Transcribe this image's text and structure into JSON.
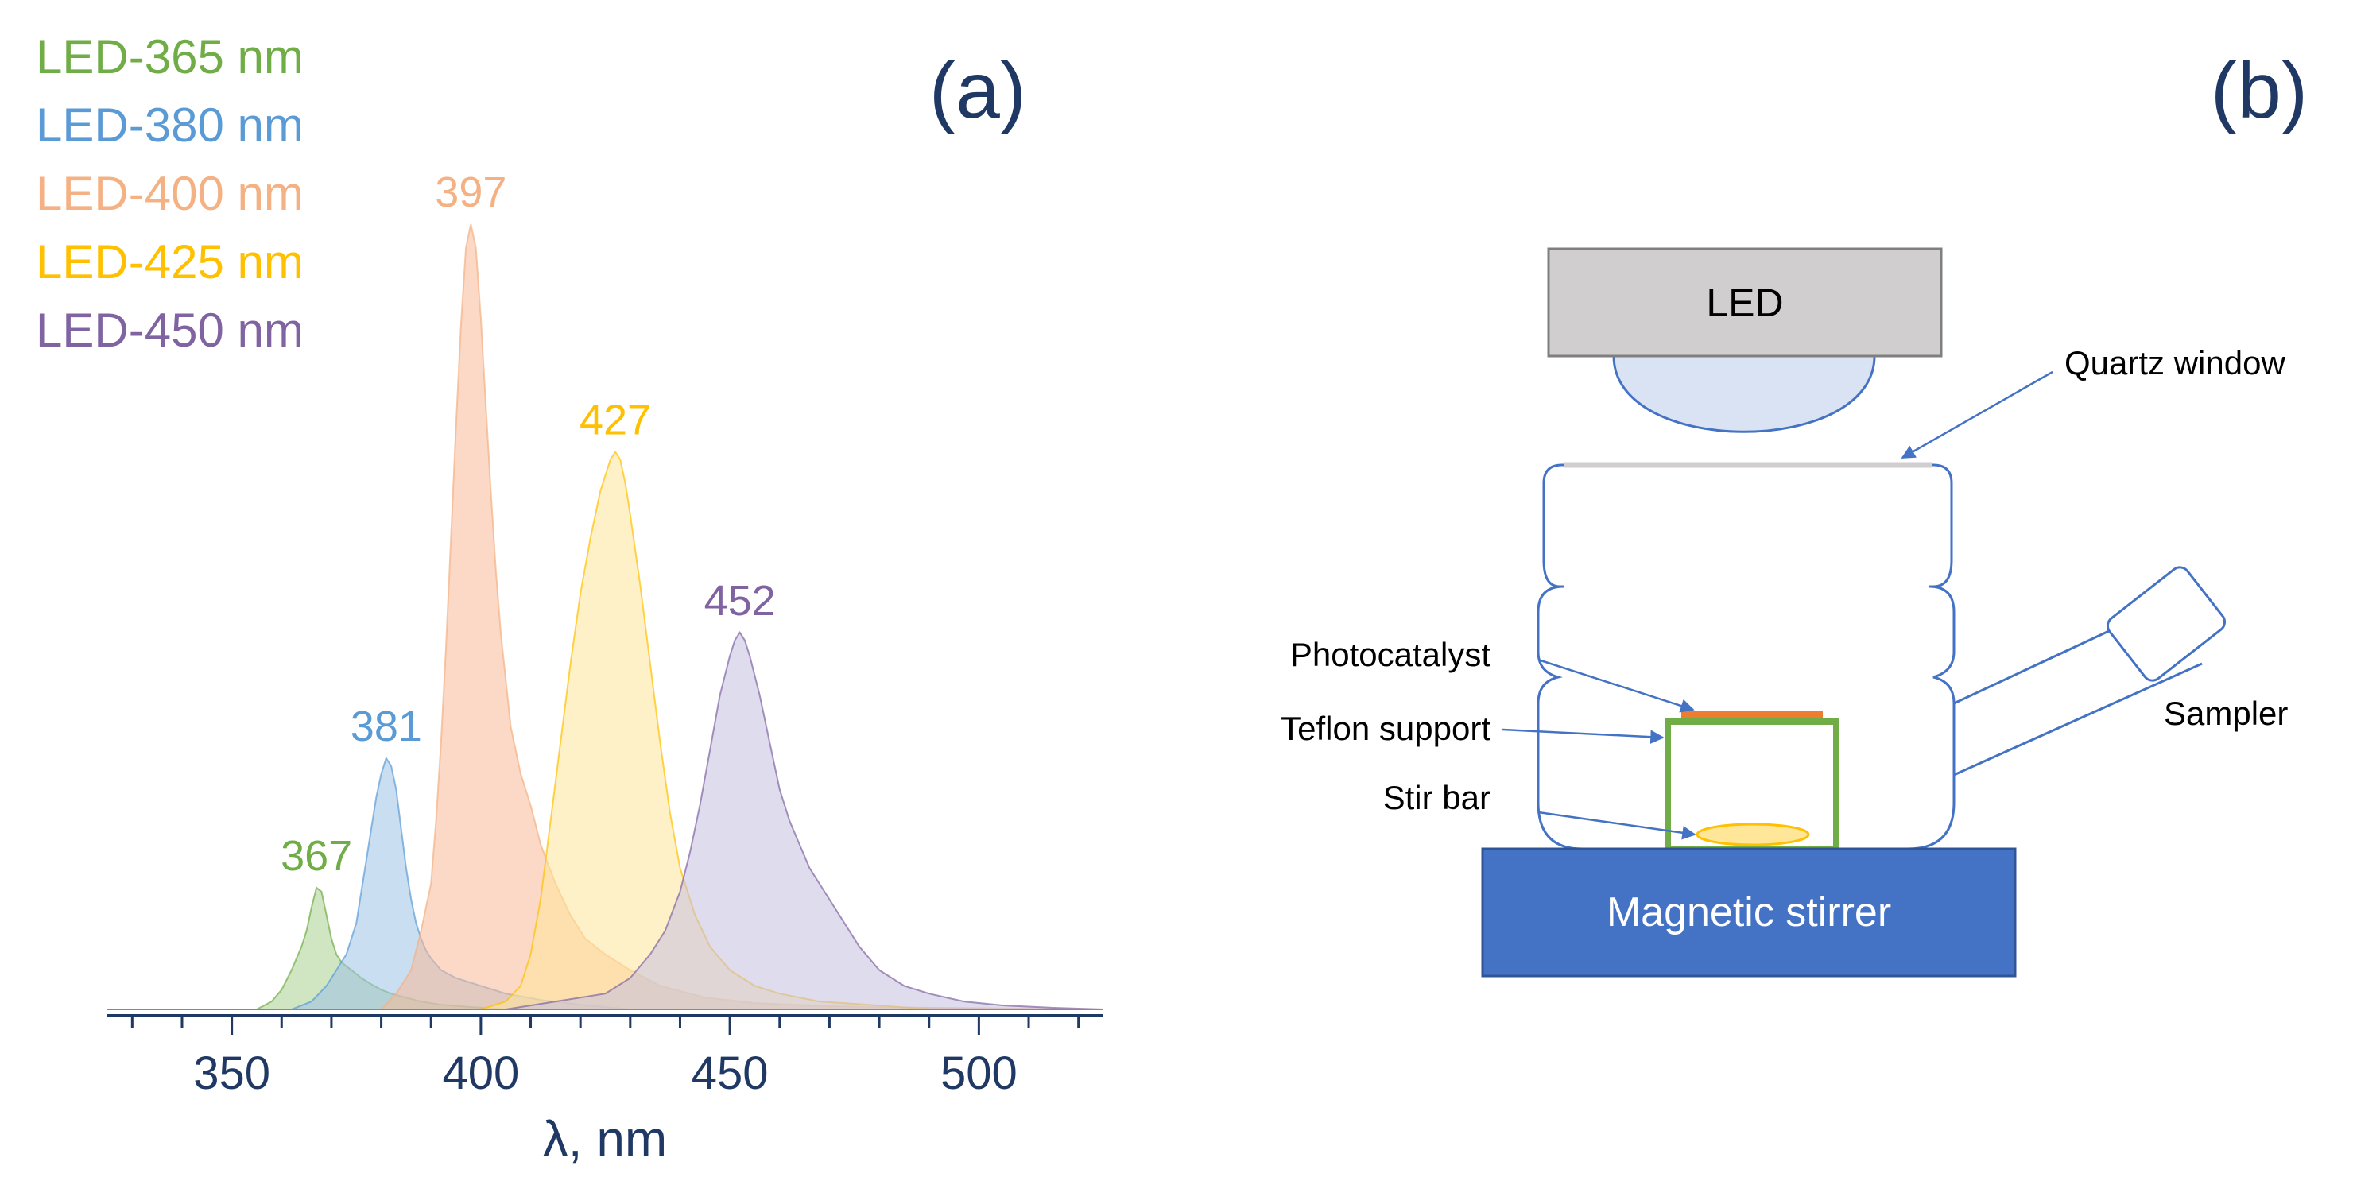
{
  "panels": {
    "a_label": "(a)",
    "b_label": "(b)"
  },
  "chart_data": {
    "type": "area",
    "title": "",
    "xlabel": "λ, nm",
    "ylabel": "",
    "xlim": [
      325,
      525
    ],
    "ylim": [
      0,
      1.0
    ],
    "x_ticks": [
      350,
      400,
      450,
      500
    ],
    "x_tick_labels": [
      "350",
      "400",
      "450",
      "500"
    ],
    "grid": false,
    "legend_position": "top-left",
    "series": [
      {
        "name": "LED-365 nm",
        "color": "#70ad47",
        "fill": "#a9d08e",
        "peak_label": "367",
        "x": [
          325,
          355,
          358,
          360,
          362,
          364,
          365,
          366,
          367,
          368,
          369,
          370,
          371,
          372,
          373,
          374,
          375,
          376,
          378,
          380,
          382,
          385,
          388,
          392,
          398,
          405,
          415,
          525
        ],
        "y": [
          0.0,
          0.0,
          0.01,
          0.025,
          0.05,
          0.08,
          0.1,
          0.13,
          0.155,
          0.15,
          0.12,
          0.09,
          0.07,
          0.06,
          0.055,
          0.05,
          0.045,
          0.04,
          0.032,
          0.025,
          0.02,
          0.015,
          0.01,
          0.006,
          0.003,
          0.0,
          0.0,
          0.0
        ]
      },
      {
        "name": "LED-380 nm",
        "color": "#5b9bd5",
        "fill": "#9dc3e6",
        "peak_label": "381",
        "x": [
          325,
          362,
          366,
          369,
          371,
          373,
          374,
          375,
          376,
          377,
          378,
          379,
          380,
          381,
          382,
          383,
          384,
          385,
          386,
          387,
          388,
          389,
          390,
          392,
          395,
          400,
          405,
          412,
          420,
          430,
          525
        ],
        "y": [
          0.0,
          0.0,
          0.01,
          0.03,
          0.05,
          0.07,
          0.09,
          0.11,
          0.15,
          0.19,
          0.23,
          0.27,
          0.3,
          0.32,
          0.31,
          0.28,
          0.23,
          0.18,
          0.14,
          0.11,
          0.09,
          0.075,
          0.065,
          0.05,
          0.04,
          0.03,
          0.02,
          0.012,
          0.006,
          0.0,
          0.0
        ]
      },
      {
        "name": "LED-400 nm",
        "color": "#f4b183",
        "fill": "#f8b998",
        "peak_label": "397",
        "x": [
          325,
          380,
          383,
          386,
          388,
          390,
          391,
          392,
          393,
          394,
          395,
          396,
          397,
          398,
          399,
          400,
          401,
          402,
          403,
          404,
          405,
          406,
          408,
          410,
          412,
          415,
          418,
          421,
          425,
          430,
          436,
          445,
          455,
          470,
          490,
          525
        ],
        "y": [
          0.0,
          0.0,
          0.02,
          0.05,
          0.1,
          0.16,
          0.24,
          0.34,
          0.46,
          0.6,
          0.74,
          0.87,
          0.97,
          1.0,
          0.97,
          0.88,
          0.77,
          0.66,
          0.56,
          0.48,
          0.42,
          0.36,
          0.3,
          0.26,
          0.21,
          0.16,
          0.12,
          0.09,
          0.07,
          0.05,
          0.03,
          0.015,
          0.008,
          0.004,
          0.002,
          0.0
        ]
      },
      {
        "name": "LED-425 nm",
        "color": "#ffc000",
        "fill": "#ffe699",
        "peak_label": "427",
        "x": [
          325,
          400,
          405,
          408,
          410,
          412,
          414,
          416,
          418,
          420,
          422,
          424,
          426,
          427,
          428,
          429,
          430,
          432,
          434,
          436,
          438,
          440,
          443,
          446,
          450,
          455,
          460,
          468,
          480,
          490,
          525
        ],
        "y": [
          0.0,
          0.0,
          0.01,
          0.03,
          0.07,
          0.14,
          0.24,
          0.34,
          0.44,
          0.53,
          0.6,
          0.66,
          0.7,
          0.71,
          0.7,
          0.67,
          0.63,
          0.54,
          0.44,
          0.34,
          0.25,
          0.18,
          0.12,
          0.08,
          0.05,
          0.03,
          0.02,
          0.01,
          0.005,
          0.0,
          0.0
        ]
      },
      {
        "name": "LED-450 nm",
        "color": "#8064a2",
        "fill": "#c5c0e0",
        "peak_label": "452",
        "x": [
          325,
          405,
          415,
          425,
          430,
          434,
          437,
          440,
          442,
          444,
          446,
          448,
          450,
          451,
          452,
          453,
          454,
          456,
          458,
          460,
          462,
          464,
          466,
          468,
          470,
          473,
          476,
          480,
          485,
          490,
          497,
          505,
          515,
          525
        ],
        "y": [
          0.0,
          0.0,
          0.01,
          0.02,
          0.04,
          0.07,
          0.1,
          0.15,
          0.2,
          0.26,
          0.33,
          0.4,
          0.45,
          0.47,
          0.48,
          0.47,
          0.45,
          0.4,
          0.34,
          0.28,
          0.24,
          0.21,
          0.18,
          0.16,
          0.14,
          0.11,
          0.08,
          0.05,
          0.03,
          0.02,
          0.01,
          0.005,
          0.002,
          0.0
        ]
      }
    ]
  },
  "diagram": {
    "led_label": "LED",
    "quartz_window_label": "Quartz window",
    "photocatalyst_label": "Photocatalyst",
    "teflon_support_label": "Teflon support",
    "stir_bar_label": "Stir bar",
    "sampler_label": "Sampler",
    "magnetic_stirrer_label": "Magnetic stirrer",
    "colors": {
      "led_box": "#d0cece",
      "led_lens": "#dae3f3",
      "outline": "#4472c4",
      "photocatalyst": "#ed7d31",
      "teflon": "#70ad47",
      "stir_bar": "#ffe699",
      "stirrer": "#4472c4",
      "stirrer_text": "#ffffff"
    }
  }
}
